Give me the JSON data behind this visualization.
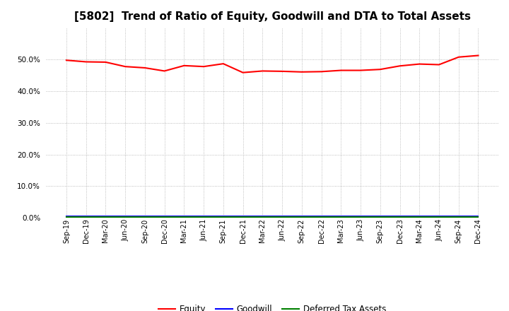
{
  "title": "[5802]  Trend of Ratio of Equity, Goodwill and DTA to Total Assets",
  "x_labels": [
    "Sep-19",
    "Dec-19",
    "Mar-20",
    "Jun-20",
    "Sep-20",
    "Dec-20",
    "Mar-21",
    "Jun-21",
    "Sep-21",
    "Dec-21",
    "Mar-22",
    "Jun-22",
    "Sep-22",
    "Dec-22",
    "Mar-23",
    "Jun-23",
    "Sep-23",
    "Dec-23",
    "Mar-24",
    "Jun-24",
    "Sep-24",
    "Dec-24"
  ],
  "equity": [
    49.8,
    49.3,
    49.2,
    47.8,
    47.4,
    46.4,
    48.1,
    47.8,
    48.7,
    45.9,
    46.4,
    46.3,
    46.1,
    46.2,
    46.6,
    46.6,
    46.9,
    48.0,
    48.6,
    48.4,
    50.8,
    51.3
  ],
  "goodwill": [
    0.5,
    0.5,
    0.5,
    0.5,
    0.5,
    0.5,
    0.5,
    0.5,
    0.5,
    0.5,
    0.5,
    0.5,
    0.5,
    0.5,
    0.5,
    0.5,
    0.5,
    0.5,
    0.5,
    0.5,
    0.5,
    0.5
  ],
  "dta": [
    0.3,
    0.3,
    0.3,
    0.3,
    0.3,
    0.3,
    0.3,
    0.3,
    0.3,
    0.3,
    0.3,
    0.3,
    0.3,
    0.3,
    0.3,
    0.3,
    0.3,
    0.3,
    0.3,
    0.3,
    0.3,
    0.3
  ],
  "equity_color": "#FF0000",
  "goodwill_color": "#0000FF",
  "dta_color": "#008000",
  "background_color": "#FFFFFF",
  "plot_bg_color": "#FFFFFF",
  "grid_color": "#AAAAAA",
  "ylim": [
    0,
    60
  ],
  "yticks": [
    0,
    10,
    20,
    30,
    40,
    50
  ],
  "title_fontsize": 11,
  "legend_labels": [
    "Equity",
    "Goodwill",
    "Deferred Tax Assets"
  ]
}
